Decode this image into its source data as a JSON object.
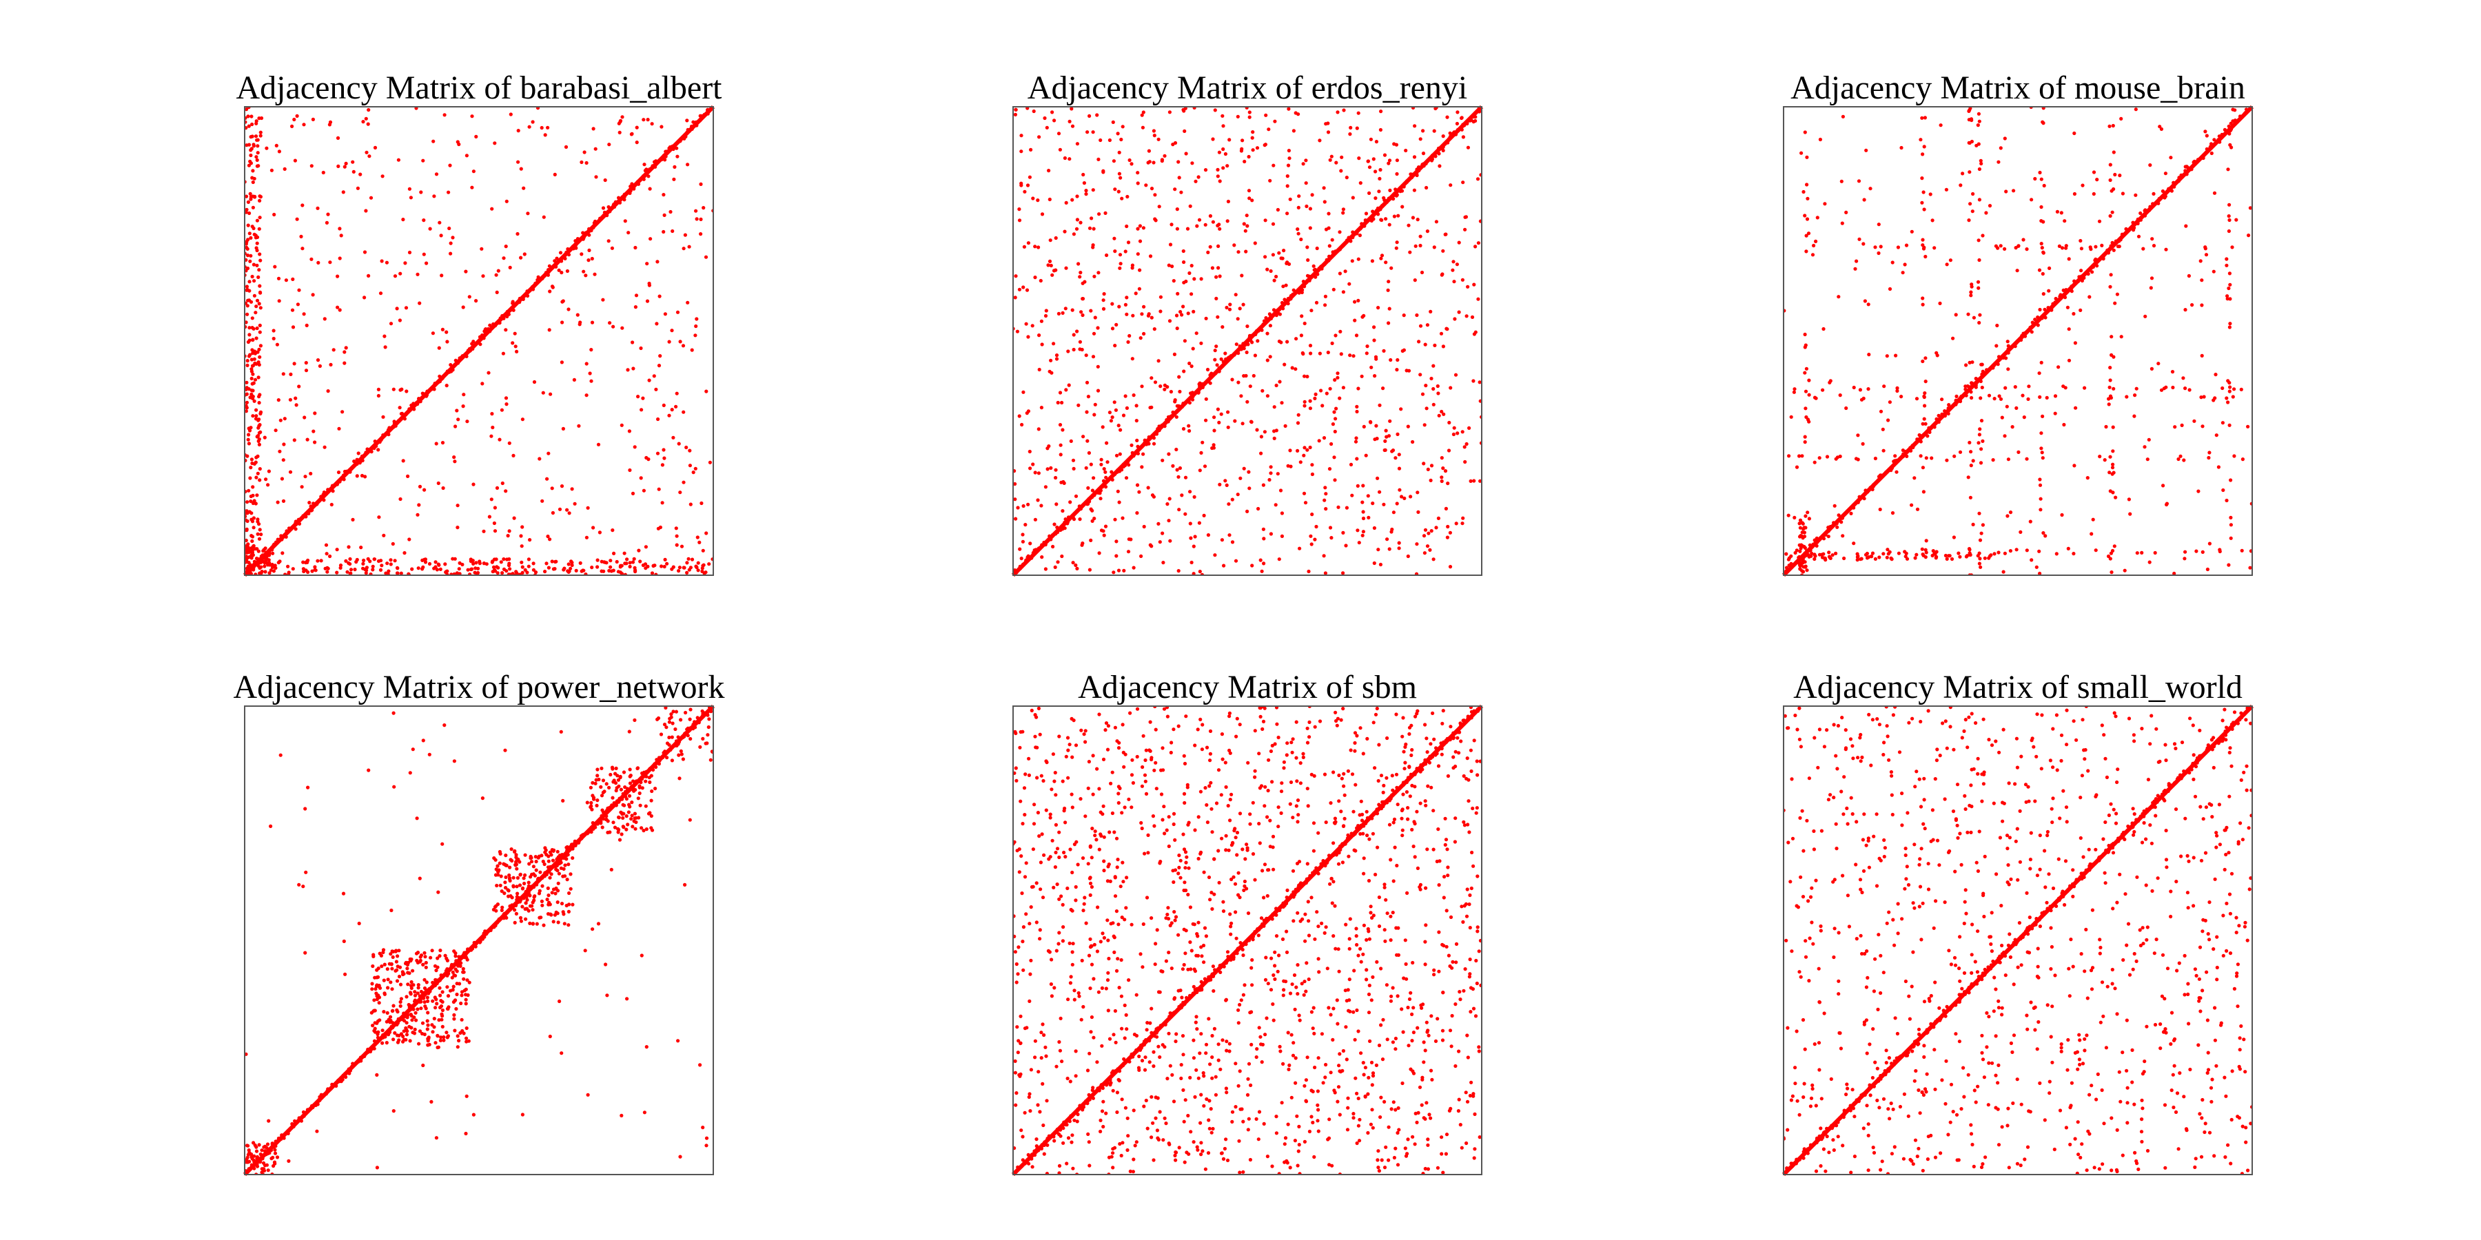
{
  "figure": {
    "background": "#ffffff",
    "marker_color": "#ff0000",
    "frame_color": "#555555"
  },
  "chart_data": [
    {
      "type": "scatter",
      "title": "Adjacency Matrix of barabasi_albert",
      "pattern": "scale-free hubs: dense left column and bottom row, sparse off-diagonal, strong diagonal",
      "xlim": [
        0,
        1
      ],
      "ylim": [
        0,
        1
      ],
      "grid": false,
      "axes_visible": false,
      "sample_points": [
        [
          0.02,
          0.95
        ],
        [
          0.03,
          0.6
        ],
        [
          0.05,
          0.3
        ],
        [
          0.2,
          0.03
        ],
        [
          0.5,
          0.02
        ],
        [
          0.8,
          0.02
        ],
        [
          0.3,
          0.55
        ],
        [
          0.6,
          0.8
        ],
        [
          0.75,
          0.35
        ]
      ]
    },
    {
      "type": "scatter",
      "title": "Adjacency Matrix of erdos_renyi",
      "pattern": "uniform random off-diagonal points, strong diagonal",
      "xlim": [
        0,
        1
      ],
      "ylim": [
        0,
        1
      ],
      "grid": false,
      "axes_visible": false,
      "sample_points": [
        [
          0.1,
          0.8
        ],
        [
          0.3,
          0.6
        ],
        [
          0.55,
          0.25
        ],
        [
          0.8,
          0.4
        ],
        [
          0.2,
          0.1
        ],
        [
          0.65,
          0.9
        ]
      ]
    },
    {
      "type": "scatter",
      "title": "Adjacency Matrix of mouse_brain",
      "pattern": "sparse grid-like lines, cluster near (0.4,0.4), dense bottom-left strip, strong diagonal",
      "xlim": [
        0,
        1
      ],
      "ylim": [
        0,
        1
      ],
      "grid": false,
      "axes_visible": false,
      "sample_points": [
        [
          0.02,
          0.05
        ],
        [
          0.4,
          0.38
        ],
        [
          0.45,
          0.42
        ],
        [
          0.7,
          0.05
        ],
        [
          0.35,
          0.7
        ],
        [
          0.6,
          0.4
        ]
      ]
    },
    {
      "type": "scatter",
      "title": "Adjacency Matrix of power_network",
      "pattern": "block-diagonal communities around 0.1, 0.4, 0.65, 0.85 with sparse outliers",
      "xlim": [
        0,
        1
      ],
      "ylim": [
        0,
        1
      ],
      "grid": false,
      "axes_visible": false,
      "sample_points": [
        [
          0.3,
          0.35
        ],
        [
          0.4,
          0.4
        ],
        [
          0.6,
          0.62
        ],
        [
          0.8,
          0.8
        ],
        [
          0.05,
          0.05
        ],
        [
          0.1,
          0.95
        ],
        [
          0.98,
          0.5
        ]
      ]
    },
    {
      "type": "scatter",
      "title": "Adjacency Matrix of sbm",
      "pattern": "dense uniform random off-diagonal points, strong diagonal",
      "xlim": [
        0,
        1
      ],
      "ylim": [
        0,
        1
      ],
      "grid": false,
      "axes_visible": false,
      "sample_points": [
        [
          0.1,
          0.9
        ],
        [
          0.3,
          0.7
        ],
        [
          0.5,
          0.2
        ],
        [
          0.75,
          0.55
        ],
        [
          0.9,
          0.1
        ],
        [
          0.2,
          0.4
        ]
      ]
    },
    {
      "type": "scatter",
      "title": "Adjacency Matrix of small_world",
      "pattern": "moderate uniform random off-diagonal points, strong diagonal",
      "xlim": [
        0,
        1
      ],
      "ylim": [
        0,
        1
      ],
      "grid": false,
      "axes_visible": false,
      "sample_points": [
        [
          0.15,
          0.85
        ],
        [
          0.35,
          0.6
        ],
        [
          0.6,
          0.3
        ],
        [
          0.85,
          0.7
        ],
        [
          0.25,
          0.15
        ],
        [
          0.7,
          0.9
        ]
      ]
    }
  ]
}
